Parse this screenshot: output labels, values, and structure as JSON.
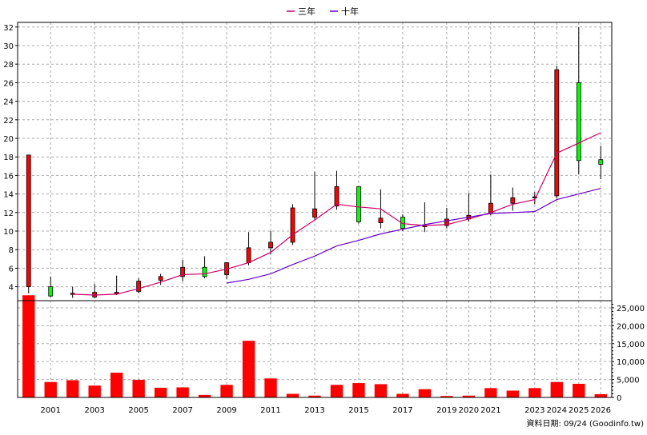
{
  "chart_data": {
    "type": "candlestick",
    "legend": {
      "position": "top-center",
      "items": [
        {
          "label": "三年",
          "color": "#cc0066"
        },
        {
          "label": "十年",
          "color": "#6600cc"
        }
      ]
    },
    "colors": {
      "up": "#ff0000",
      "down": "#00ff00",
      "volume": "#ff0000"
    },
    "price_axis": {
      "min": 2.5,
      "max": 32.5,
      "ticks": [
        4,
        6,
        8,
        10,
        12,
        14,
        16,
        18,
        20,
        22,
        24,
        26,
        28,
        30,
        32
      ]
    },
    "volume_axis": {
      "min": 0,
      "max": 27000,
      "ticks": [
        0,
        5000,
        10000,
        15000,
        20000,
        25000
      ],
      "tick_labels": [
        "0",
        "5,000",
        "10,000",
        "15,000",
        "20,000",
        "25,000"
      ]
    },
    "x_tick_labels": [
      "2001",
      "2003",
      "2005",
      "2007",
      "2009",
      "2011",
      "2013",
      "2015",
      "2017",
      "2019",
      "2020",
      "2021",
      "2023",
      "2024",
      "2025",
      "2026"
    ],
    "candles": [
      {
        "open": 4.0,
        "close": 18.2,
        "high": 18.2,
        "low": 3.3,
        "volume": 28500
      },
      {
        "open": 4.0,
        "close": 3.0,
        "high": 5.1,
        "low": 2.9,
        "volume": 4300
      },
      {
        "open": 3.3,
        "close": 3.3,
        "high": 4.0,
        "low": 2.8,
        "volume": 4800
      },
      {
        "open": 2.9,
        "close": 3.4,
        "high": 4.3,
        "low": 2.8,
        "volume": 3300
      },
      {
        "open": 3.4,
        "close": 3.4,
        "high": 5.2,
        "low": 3.1,
        "volume": 6900
      },
      {
        "open": 3.5,
        "close": 4.6,
        "high": 4.9,
        "low": 3.3,
        "volume": 4900
      },
      {
        "open": 4.7,
        "close": 5.1,
        "high": 5.4,
        "low": 4.2,
        "volume": 2700
      },
      {
        "open": 5.1,
        "close": 6.1,
        "high": 6.9,
        "low": 4.6,
        "volume": 2800
      },
      {
        "open": 6.1,
        "close": 5.1,
        "high": 7.3,
        "low": 4.9,
        "volume": 700
      },
      {
        "open": 5.3,
        "close": 6.6,
        "high": 6.6,
        "low": 4.8,
        "volume": 3500
      },
      {
        "open": 6.6,
        "close": 8.2,
        "high": 9.9,
        "low": 6.3,
        "volume": 15800
      },
      {
        "open": 8.2,
        "close": 8.8,
        "high": 10.0,
        "low": 7.5,
        "volume": 5300
      },
      {
        "open": 8.8,
        "close": 12.5,
        "high": 12.9,
        "low": 8.5,
        "volume": 1000
      },
      {
        "open": 11.5,
        "close": 12.4,
        "high": 16.4,
        "low": 11.2,
        "volume": 500
      },
      {
        "open": 12.7,
        "close": 14.8,
        "high": 16.5,
        "low": 12.3,
        "volume": 3500
      },
      {
        "open": 14.8,
        "close": 11.0,
        "high": 14.8,
        "low": 10.8,
        "volume": 4000
      },
      {
        "open": 10.9,
        "close": 11.4,
        "high": 14.5,
        "low": 10.3,
        "volume": 3700
      },
      {
        "open": 11.5,
        "close": 10.3,
        "high": 11.8,
        "low": 10.0,
        "volume": 1000
      },
      {
        "open": 10.5,
        "close": 10.6,
        "high": 13.1,
        "low": 9.9,
        "volume": 2300
      },
      {
        "open": 10.6,
        "close": 11.3,
        "high": 12.5,
        "low": 10.3,
        "volume": 400
      },
      {
        "open": 11.3,
        "close": 11.7,
        "high": 14.1,
        "low": 11.0,
        "volume": 500
      },
      {
        "open": 11.9,
        "close": 13.0,
        "high": 16.1,
        "low": 11.7,
        "volume": 2600
      },
      {
        "open": 13.0,
        "close": 13.6,
        "high": 14.7,
        "low": 12.2,
        "volume": 1900
      },
      {
        "open": 13.7,
        "close": 13.7,
        "high": 14.2,
        "low": 12.9,
        "volume": 2600
      },
      {
        "open": 13.8,
        "close": 27.4,
        "high": 27.8,
        "low": 13.5,
        "volume": 4300
      },
      {
        "open": 26.0,
        "close": 17.6,
        "high": 32.0,
        "low": 16.1,
        "volume": 3800
      },
      {
        "open": 17.7,
        "close": 17.2,
        "high": 19.2,
        "low": 15.6,
        "volume": 900
      }
    ],
    "series": [
      {
        "name": "三年",
        "values": [
          null,
          null,
          3.2,
          3.1,
          3.2,
          3.8,
          4.5,
          5.3,
          5.4,
          5.9,
          6.6,
          7.7,
          9.6,
          11.2,
          12.9,
          12.6,
          12.4,
          10.8,
          10.6,
          10.7,
          11.3,
          12.0,
          12.9,
          13.4,
          18.4,
          19.5,
          20.6
        ]
      },
      {
        "name": "十年",
        "values": [
          null,
          null,
          null,
          null,
          null,
          null,
          null,
          null,
          null,
          4.4,
          4.8,
          5.4,
          6.4,
          7.3,
          8.4,
          9.0,
          9.7,
          10.2,
          10.7,
          11.1,
          11.5,
          11.9,
          12.0,
          12.1,
          13.4,
          14.0,
          14.6
        ]
      }
    ],
    "footer": "資料日期: 09/24  (Goodinfo.tw)"
  }
}
